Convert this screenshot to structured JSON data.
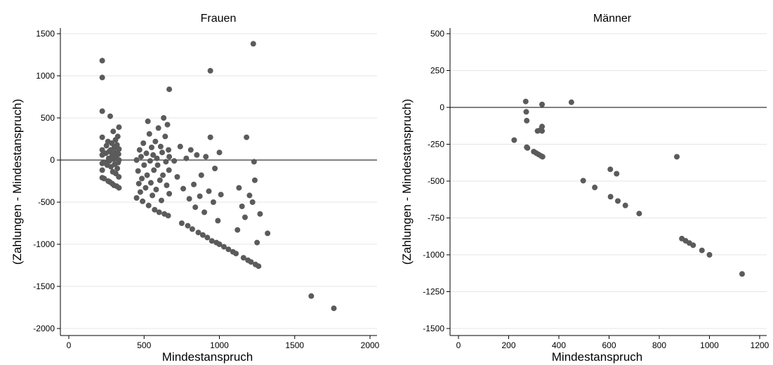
{
  "chart_data": [
    {
      "type": "scatter",
      "title": "Frauen",
      "xlabel": "Mindestanspruch",
      "ylabel": "(Zahlungen - Mindestanspruch)",
      "xlim": [
        0,
        2000
      ],
      "ylim": [
        -2000,
        1500
      ],
      "xticks": [
        0,
        500,
        1000,
        1500,
        2000
      ],
      "yticks": [
        -2000,
        -1500,
        -1000,
        -500,
        0,
        500,
        1000,
        1500
      ],
      "grid": true,
      "reference_line_y": 0,
      "marker_color": "#5b5b5b",
      "points": [
        [
          222,
          1180
        ],
        [
          222,
          980
        ],
        [
          222,
          580
        ],
        [
          222,
          270
        ],
        [
          222,
          120
        ],
        [
          222,
          60
        ],
        [
          222,
          -40
        ],
        [
          222,
          -120
        ],
        [
          222,
          -210
        ],
        [
          235,
          -220
        ],
        [
          240,
          -30
        ],
        [
          245,
          80
        ],
        [
          250,
          170
        ],
        [
          255,
          -60
        ],
        [
          260,
          220
        ],
        [
          262,
          -250
        ],
        [
          265,
          20
        ],
        [
          268,
          100
        ],
        [
          270,
          -10
        ],
        [
          272,
          -260
        ],
        [
          275,
          520
        ],
        [
          278,
          120
        ],
        [
          280,
          -80
        ],
        [
          282,
          30
        ],
        [
          285,
          200
        ],
        [
          288,
          -280
        ],
        [
          290,
          60
        ],
        [
          292,
          -140
        ],
        [
          295,
          340
        ],
        [
          298,
          10
        ],
        [
          300,
          -300
        ],
        [
          302,
          150
        ],
        [
          305,
          -50
        ],
        [
          308,
          90
        ],
        [
          310,
          240
        ],
        [
          312,
          -160
        ],
        [
          315,
          40
        ],
        [
          318,
          -310
        ],
        [
          320,
          180
        ],
        [
          322,
          -100
        ],
        [
          325,
          280
        ],
        [
          328,
          -30
        ],
        [
          330,
          70
        ],
        [
          332,
          -200
        ],
        [
          333,
          390
        ],
        [
          333,
          -330
        ],
        [
          333,
          130
        ],
        [
          333,
          0
        ],
        [
          450,
          0
        ],
        [
          450,
          -450
        ],
        [
          460,
          -130
        ],
        [
          465,
          -280
        ],
        [
          470,
          120
        ],
        [
          475,
          -380
        ],
        [
          480,
          40
        ],
        [
          485,
          -220
        ],
        [
          490,
          -490
        ],
        [
          495,
          200
        ],
        [
          500,
          -60
        ],
        [
          510,
          -330
        ],
        [
          515,
          80
        ],
        [
          520,
          -180
        ],
        [
          525,
          460
        ],
        [
          530,
          -540
        ],
        [
          535,
          310
        ],
        [
          540,
          -10
        ],
        [
          545,
          -270
        ],
        [
          550,
          150
        ],
        [
          555,
          -420
        ],
        [
          560,
          60
        ],
        [
          565,
          -120
        ],
        [
          570,
          -590
        ],
        [
          575,
          220
        ],
        [
          580,
          -350
        ],
        [
          585,
          20
        ],
        [
          590,
          -60
        ],
        [
          595,
          380
        ],
        [
          600,
          -620
        ],
        [
          605,
          -240
        ],
        [
          610,
          160
        ],
        [
          615,
          -480
        ],
        [
          620,
          90
        ],
        [
          625,
          -180
        ],
        [
          630,
          500
        ],
        [
          635,
          -640
        ],
        [
          640,
          280
        ],
        [
          645,
          -20
        ],
        [
          650,
          -300
        ],
        [
          655,
          420
        ],
        [
          660,
          -660
        ],
        [
          662,
          120
        ],
        [
          665,
          -120
        ],
        [
          667,
          840
        ],
        [
          667,
          -400
        ],
        [
          667,
          40
        ],
        [
          700,
          -10
        ],
        [
          720,
          -200
        ],
        [
          740,
          160
        ],
        [
          750,
          -750
        ],
        [
          760,
          -340
        ],
        [
          780,
          20
        ],
        [
          790,
          -780
        ],
        [
          800,
          -460
        ],
        [
          810,
          120
        ],
        [
          820,
          -820
        ],
        [
          830,
          -290
        ],
        [
          840,
          -560
        ],
        [
          850,
          60
        ],
        [
          860,
          -860
        ],
        [
          870,
          -430
        ],
        [
          880,
          -180
        ],
        [
          890,
          -890
        ],
        [
          900,
          -620
        ],
        [
          910,
          40
        ],
        [
          920,
          -920
        ],
        [
          930,
          -370
        ],
        [
          940,
          270
        ],
        [
          940,
          1060
        ],
        [
          950,
          -960
        ],
        [
          960,
          -500
        ],
        [
          970,
          -100
        ],
        [
          980,
          -980
        ],
        [
          990,
          -720
        ],
        [
          1000,
          90
        ],
        [
          1000,
          -1000
        ],
        [
          1010,
          -410
        ],
        [
          1030,
          -1030
        ],
        [
          1060,
          -1060
        ],
        [
          1090,
          -1090
        ],
        [
          1110,
          -1110
        ],
        [
          1120,
          -830
        ],
        [
          1130,
          -330
        ],
        [
          1150,
          -550
        ],
        [
          1160,
          -1160
        ],
        [
          1170,
          -680
        ],
        [
          1180,
          270
        ],
        [
          1190,
          -1190
        ],
        [
          1200,
          -420
        ],
        [
          1210,
          -1210
        ],
        [
          1220,
          -500
        ],
        [
          1225,
          1380
        ],
        [
          1230,
          -20
        ],
        [
          1235,
          -240
        ],
        [
          1240,
          -1240
        ],
        [
          1250,
          -980
        ],
        [
          1260,
          -1260
        ],
        [
          1270,
          -640
        ],
        [
          1320,
          -870
        ],
        [
          1610,
          -1615
        ],
        [
          1760,
          -1760
        ]
      ]
    },
    {
      "type": "scatter",
      "title": "Männer",
      "xlabel": "Mindestanspruch",
      "ylabel": "(Zahlungen - Mindestanspruch)",
      "xlim": [
        0,
        1200
      ],
      "ylim": [
        -1500,
        500
      ],
      "xticks": [
        0,
        200,
        400,
        600,
        800,
        1000,
        1200
      ],
      "yticks": [
        -1500,
        -1250,
        -1000,
        -750,
        -500,
        -250,
        0,
        250,
        500
      ],
      "grid": true,
      "reference_line_y": 0,
      "marker_color": "#5b5b5b",
      "points": [
        [
          222,
          -222
        ],
        [
          268,
          40
        ],
        [
          270,
          -30
        ],
        [
          272,
          -90
        ],
        [
          272,
          -270
        ],
        [
          275,
          -275
        ],
        [
          300,
          -300
        ],
        [
          310,
          -310
        ],
        [
          315,
          -160
        ],
        [
          320,
          -320
        ],
        [
          325,
          -155
        ],
        [
          330,
          -330
        ],
        [
          333,
          20
        ],
        [
          333,
          -130
        ],
        [
          333,
          -160
        ],
        [
          335,
          -335
        ],
        [
          450,
          35
        ],
        [
          497,
          -497
        ],
        [
          543,
          -543
        ],
        [
          605,
          -420
        ],
        [
          606,
          -606
        ],
        [
          630,
          -450
        ],
        [
          635,
          -635
        ],
        [
          665,
          -665
        ],
        [
          720,
          -720
        ],
        [
          870,
          -335
        ],
        [
          890,
          -890
        ],
        [
          905,
          -905
        ],
        [
          920,
          -920
        ],
        [
          935,
          -935
        ],
        [
          970,
          -970
        ],
        [
          1000,
          -1000
        ],
        [
          1130,
          -1130
        ]
      ]
    }
  ]
}
